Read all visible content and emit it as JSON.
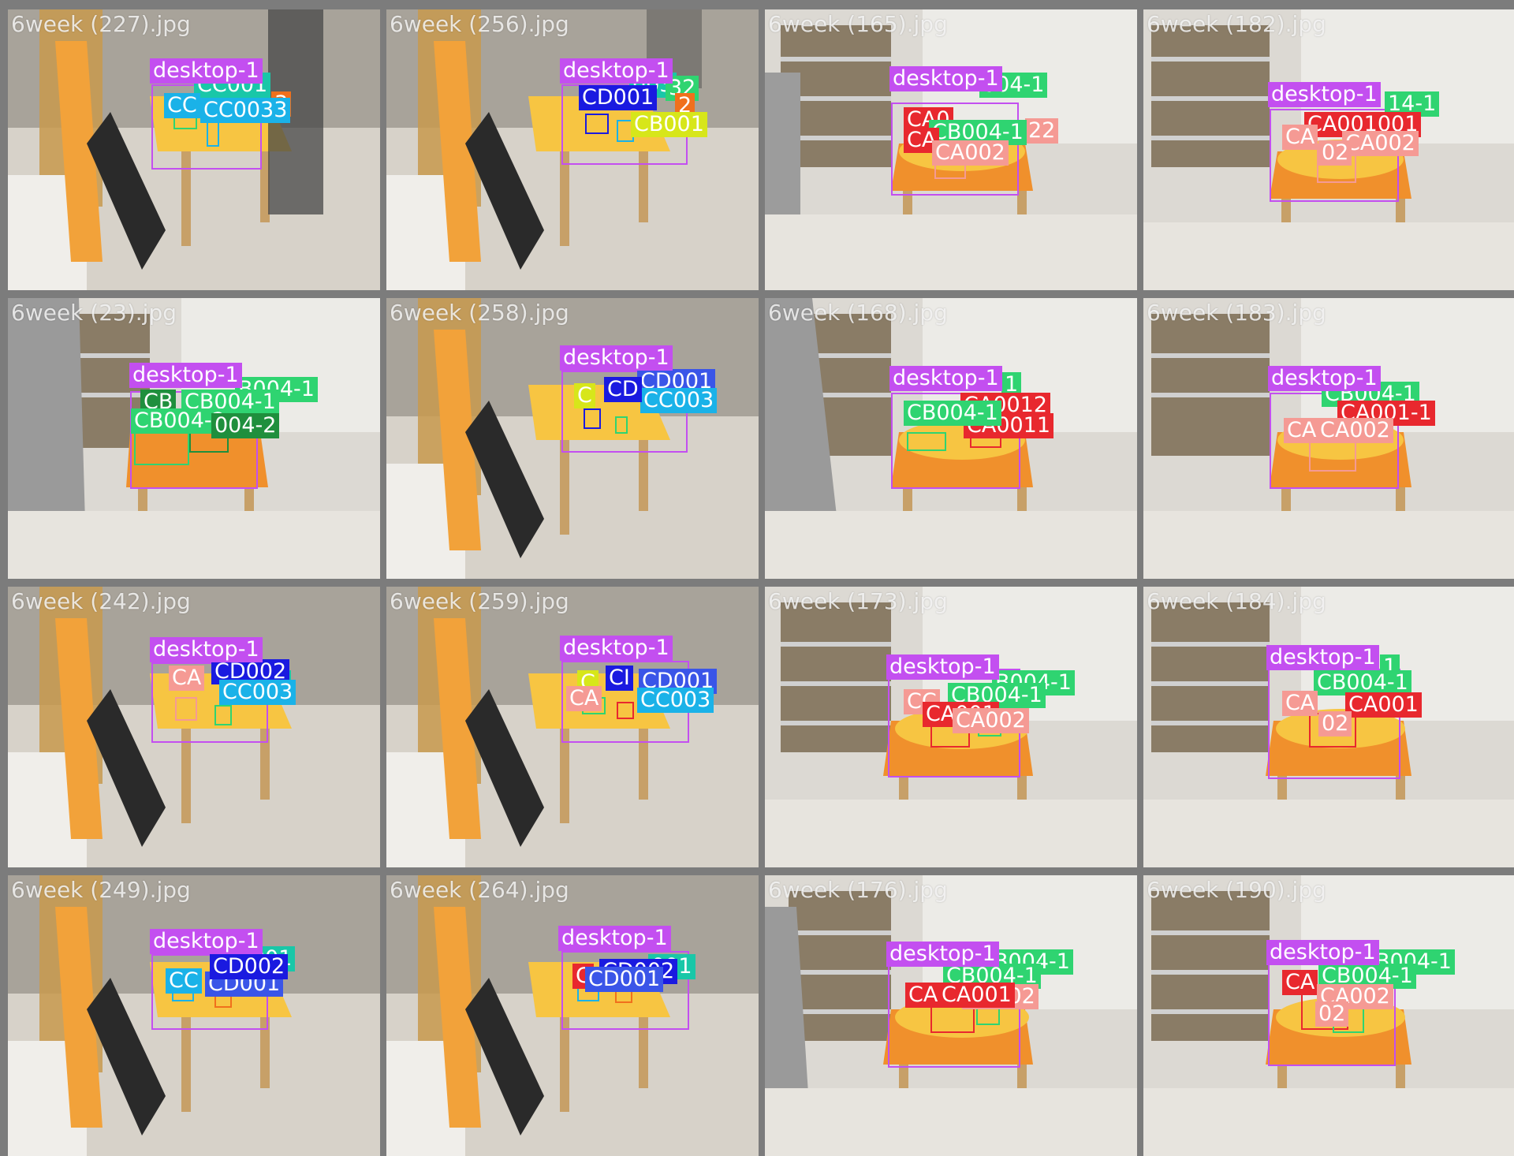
{
  "colors": {
    "desktop": "#c34ff0",
    "CC001": "#19c7a8",
    "CC003": "#1ab2e8",
    "CD001": "#3a55e8",
    "CD002": "#1a1ae0",
    "CB001": "#d7e61a",
    "CB004": "#2fd471",
    "CB004-2": "#1f8f3d",
    "CA001": "#e8282e",
    "CA002": "#f59a94",
    "orange": "#f0701c"
  },
  "tiles": [
    {
      "name": "6week (227).jpg",
      "scene": "office",
      "labels": [
        {
          "text": "desktop-1",
          "cls": "desktop"
        },
        {
          "text": "CC001",
          "cls": "CC001"
        },
        {
          "text": "CC",
          "cls": "CC003"
        },
        {
          "text": "CC0033",
          "cls": "CC003"
        },
        {
          "text": "3",
          "cls": "orange"
        }
      ]
    },
    {
      "name": "6week (256).jpg",
      "scene": "office",
      "labels": [
        {
          "text": "desktop-1",
          "cls": "desktop"
        },
        {
          "text": "003",
          "cls": "CC001"
        },
        {
          "text": "32",
          "cls": "CB004"
        },
        {
          "text": "CD001",
          "cls": "CD002"
        },
        {
          "text": "2",
          "cls": "orange"
        },
        {
          "text": "CB001",
          "cls": "CB001"
        }
      ]
    },
    {
      "name": "6week (165).jpg",
      "scene": "shelf",
      "labels": [
        {
          "text": "desktop-1",
          "cls": "desktop"
        },
        {
          "text": "004-1",
          "cls": "CB004"
        },
        {
          "text": "CA0",
          "cls": "CA001"
        },
        {
          "text": "CB004-1",
          "cls": "CB004"
        },
        {
          "text": "22",
          "cls": "CA002"
        },
        {
          "text": "CA",
          "cls": "CA001"
        },
        {
          "text": "CA002",
          "cls": "CA002"
        }
      ]
    },
    {
      "name": "6week (182).jpg",
      "scene": "shelf",
      "labels": [
        {
          "text": "desktop-1",
          "cls": "desktop"
        },
        {
          "text": "14-1",
          "cls": "CB004"
        },
        {
          "text": "CA001001",
          "cls": "CA001"
        },
        {
          "text": "CA002",
          "cls": "CA002"
        },
        {
          "text": "CA",
          "cls": "CA002"
        },
        {
          "text": "02",
          "cls": "CA002"
        }
      ]
    },
    {
      "name": "6week (23).jpg",
      "scene": "shelf",
      "labels": [
        {
          "text": "desktop-1",
          "cls": "desktop"
        },
        {
          "text": "B004-1",
          "cls": "CB004"
        },
        {
          "text": "CB",
          "cls": "CB004-2"
        },
        {
          "text": "CB004-1",
          "cls": "CB004"
        },
        {
          "text": "CB004-2",
          "cls": "CB004"
        },
        {
          "text": "004-2",
          "cls": "CB004-2"
        }
      ]
    },
    {
      "name": "6week (258).jpg",
      "scene": "office",
      "labels": [
        {
          "text": "desktop-1",
          "cls": "desktop"
        },
        {
          "text": "CD001",
          "cls": "CD001"
        },
        {
          "text": "CD",
          "cls": "CD002"
        },
        {
          "text": "C",
          "cls": "CB001"
        },
        {
          "text": "CC003",
          "cls": "CC003"
        }
      ]
    },
    {
      "name": "6week (168).jpg",
      "scene": "shelf",
      "labels": [
        {
          "text": "desktop-1",
          "cls": "desktop"
        },
        {
          "text": "1",
          "cls": "CB004"
        },
        {
          "text": "CA0012",
          "cls": "CA001"
        },
        {
          "text": "CB004-1",
          "cls": "CB004"
        },
        {
          "text": "CA0011",
          "cls": "CA001"
        }
      ]
    },
    {
      "name": "6week (183).jpg",
      "scene": "shelf",
      "labels": [
        {
          "text": "desktop-1",
          "cls": "desktop"
        },
        {
          "text": "CB004-1",
          "cls": "CB004"
        },
        {
          "text": "CA001-1",
          "cls": "CA001"
        },
        {
          "text": "CA",
          "cls": "CA002"
        },
        {
          "text": "CA002",
          "cls": "CA002"
        }
      ]
    },
    {
      "name": "6week (242).jpg",
      "scene": "office",
      "labels": [
        {
          "text": "desktop-1",
          "cls": "desktop"
        },
        {
          "text": "CD002",
          "cls": "CD002"
        },
        {
          "text": "CA",
          "cls": "CA002"
        },
        {
          "text": "CC003",
          "cls": "CC003"
        },
        {
          "text": "3",
          "cls": "CC001"
        }
      ]
    },
    {
      "name": "6week (259).jpg",
      "scene": "office",
      "labels": [
        {
          "text": "desktop-1",
          "cls": "desktop"
        },
        {
          "text": "CD001",
          "cls": "CD001"
        },
        {
          "text": "CI",
          "cls": "CD002"
        },
        {
          "text": "C",
          "cls": "CB001"
        },
        {
          "text": "CC003",
          "cls": "CC003"
        },
        {
          "text": "CA",
          "cls": "CA002"
        }
      ]
    },
    {
      "name": "6week (173).jpg",
      "scene": "shelf",
      "labels": [
        {
          "text": "desktop-1",
          "cls": "desktop"
        },
        {
          "text": "B004-1",
          "cls": "CB004"
        },
        {
          "text": "CB004-1",
          "cls": "CB004"
        },
        {
          "text": "CA001",
          "cls": "CA001"
        },
        {
          "text": "CA002",
          "cls": "CA002"
        },
        {
          "text": "CC",
          "cls": "CA002"
        }
      ]
    },
    {
      "name": "6week (184).jpg",
      "scene": "shelf",
      "labels": [
        {
          "text": "desktop-1",
          "cls": "desktop"
        },
        {
          "text": "1",
          "cls": "CB004"
        },
        {
          "text": "CB004-1",
          "cls": "CB004"
        },
        {
          "text": "CA001",
          "cls": "CA001"
        },
        {
          "text": "CA",
          "cls": "CA002"
        },
        {
          "text": "02",
          "cls": "CA002"
        }
      ]
    },
    {
      "name": "6week (249).jpg",
      "scene": "office",
      "labels": [
        {
          "text": "desktop-1",
          "cls": "desktop"
        },
        {
          "text": "C001",
          "cls": "CC001"
        },
        {
          "text": "CD002",
          "cls": "CD002"
        },
        {
          "text": "CD001",
          "cls": "CD001"
        },
        {
          "text": "CC",
          "cls": "CC003"
        }
      ]
    },
    {
      "name": "6week (264).jpg",
      "scene": "office",
      "labels": [
        {
          "text": "desktop-1",
          "cls": "desktop"
        },
        {
          "text": "CD002",
          "cls": "CD002"
        },
        {
          "text": "001",
          "cls": "CC001"
        },
        {
          "text": "CD001",
          "cls": "CD001"
        },
        {
          "text": "C",
          "cls": "CA001"
        }
      ]
    },
    {
      "name": "6week (176).jpg",
      "scene": "shelf",
      "labels": [
        {
          "text": "desktop-1",
          "cls": "desktop"
        },
        {
          "text": "B004-1",
          "cls": "CB004"
        },
        {
          "text": "CB004-1",
          "cls": "CB004"
        },
        {
          "text": "CA",
          "cls": "CA001"
        },
        {
          "text": "CA001",
          "cls": "CA001"
        },
        {
          "text": "CA002",
          "cls": "CA002"
        }
      ]
    },
    {
      "name": "6week (190).jpg",
      "scene": "shelf",
      "labels": [
        {
          "text": "desktop-1",
          "cls": "desktop"
        },
        {
          "text": "B004-1",
          "cls": "CB004"
        },
        {
          "text": "CA",
          "cls": "CA001"
        },
        {
          "text": "CB004-1",
          "cls": "CB004"
        },
        {
          "text": "CA002",
          "cls": "CA002"
        },
        {
          "text": "02",
          "cls": "CA002"
        }
      ]
    }
  ]
}
